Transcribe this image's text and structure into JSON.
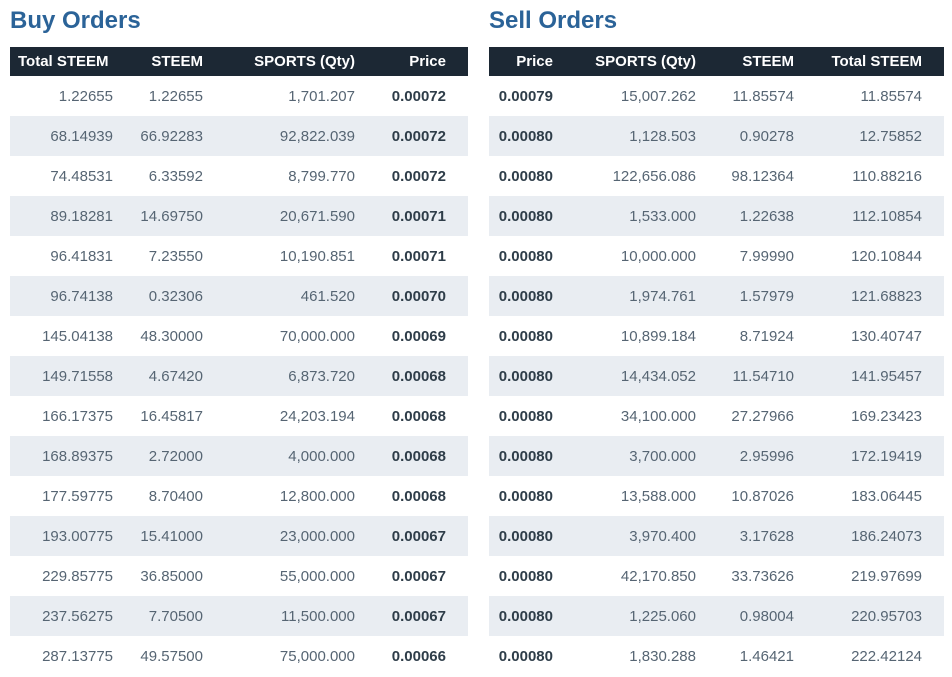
{
  "colors": {
    "header_bg": "#1c2834",
    "title": "#2b6398",
    "stripe": "#e9edf2",
    "text": "#566573",
    "price_text": "#2e3d49"
  },
  "buy_orders": {
    "title": "Buy Orders",
    "columns": [
      "Total STEEM",
      "STEEM",
      "SPORTS (Qty)",
      "Price"
    ],
    "price_column_index": 3,
    "rows": [
      [
        "1.22655",
        "1.22655",
        "1,701.207",
        "0.00072"
      ],
      [
        "68.14939",
        "66.92283",
        "92,822.039",
        "0.00072"
      ],
      [
        "74.48531",
        "6.33592",
        "8,799.770",
        "0.00072"
      ],
      [
        "89.18281",
        "14.69750",
        "20,671.590",
        "0.00071"
      ],
      [
        "96.41831",
        "7.23550",
        "10,190.851",
        "0.00071"
      ],
      [
        "96.74138",
        "0.32306",
        "461.520",
        "0.00070"
      ],
      [
        "145.04138",
        "48.30000",
        "70,000.000",
        "0.00069"
      ],
      [
        "149.71558",
        "4.67420",
        "6,873.720",
        "0.00068"
      ],
      [
        "166.17375",
        "16.45817",
        "24,203.194",
        "0.00068"
      ],
      [
        "168.89375",
        "2.72000",
        "4,000.000",
        "0.00068"
      ],
      [
        "177.59775",
        "8.70400",
        "12,800.000",
        "0.00068"
      ],
      [
        "193.00775",
        "15.41000",
        "23,000.000",
        "0.00067"
      ],
      [
        "229.85775",
        "36.85000",
        "55,000.000",
        "0.00067"
      ],
      [
        "237.56275",
        "7.70500",
        "11,500.000",
        "0.00067"
      ],
      [
        "287.13775",
        "49.57500",
        "75,000.000",
        "0.00066"
      ]
    ]
  },
  "sell_orders": {
    "title": "Sell Orders",
    "columns": [
      "Price",
      "SPORTS (Qty)",
      "STEEM",
      "Total STEEM"
    ],
    "price_column_index": 0,
    "rows": [
      [
        "0.00079",
        "15,007.262",
        "11.85574",
        "11.85574"
      ],
      [
        "0.00080",
        "1,128.503",
        "0.90278",
        "12.75852"
      ],
      [
        "0.00080",
        "122,656.086",
        "98.12364",
        "110.88216"
      ],
      [
        "0.00080",
        "1,533.000",
        "1.22638",
        "112.10854"
      ],
      [
        "0.00080",
        "10,000.000",
        "7.99990",
        "120.10844"
      ],
      [
        "0.00080",
        "1,974.761",
        "1.57979",
        "121.68823"
      ],
      [
        "0.00080",
        "10,899.184",
        "8.71924",
        "130.40747"
      ],
      [
        "0.00080",
        "14,434.052",
        "11.54710",
        "141.95457"
      ],
      [
        "0.00080",
        "34,100.000",
        "27.27966",
        "169.23423"
      ],
      [
        "0.00080",
        "3,700.000",
        "2.95996",
        "172.19419"
      ],
      [
        "0.00080",
        "13,588.000",
        "10.87026",
        "183.06445"
      ],
      [
        "0.00080",
        "3,970.400",
        "3.17628",
        "186.24073"
      ],
      [
        "0.00080",
        "42,170.850",
        "33.73626",
        "219.97699"
      ],
      [
        "0.00080",
        "1,225.060",
        "0.98004",
        "220.95703"
      ],
      [
        "0.00080",
        "1,830.288",
        "1.46421",
        "222.42124"
      ]
    ]
  }
}
